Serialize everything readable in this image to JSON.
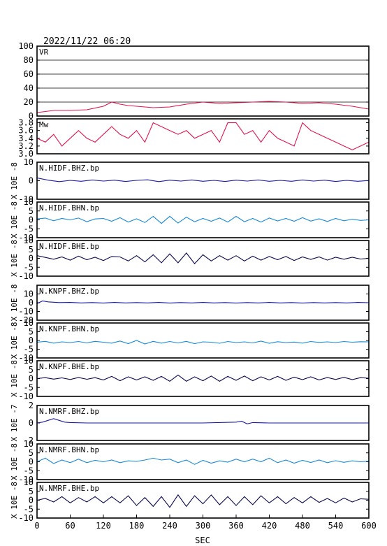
{
  "header": {
    "datetime": "2022/11/22 06:20"
  },
  "chart_data": {
    "type": "line",
    "xlabel": "SEC",
    "xlim": [
      0,
      600
    ],
    "xticks": [
      "0",
      "60",
      "120",
      "180",
      "240",
      "300",
      "360",
      "420",
      "480",
      "540",
      "600"
    ],
    "panels": [
      {
        "name": "VR",
        "ylim": [
          0,
          100
        ],
        "yticks": [
          "100",
          "80",
          "60",
          "40",
          "20",
          "0"
        ],
        "ylabel": "",
        "color": "#e0144c",
        "grid": true,
        "x": [
          0,
          30,
          60,
          90,
          120,
          135,
          150,
          165,
          180,
          210,
          240,
          270,
          300,
          330,
          360,
          390,
          420,
          450,
          480,
          510,
          540,
          570,
          600
        ],
        "y": [
          5,
          8,
          8,
          9,
          14,
          20,
          17,
          15,
          14,
          12,
          13,
          17,
          20,
          18,
          19,
          20,
          21,
          20,
          18,
          19,
          17,
          14,
          10
        ]
      },
      {
        "name": "Mw",
        "ylim": [
          3.0,
          3.9
        ],
        "yticks": [
          "3.8",
          "3.6",
          "3.4",
          "3.2",
          "3.0"
        ],
        "ylabel": "",
        "color": "#e0144c",
        "x": [
          0,
          15,
          30,
          45,
          60,
          75,
          90,
          105,
          120,
          135,
          150,
          165,
          180,
          195,
          210,
          225,
          240,
          255,
          270,
          285,
          300,
          315,
          330,
          345,
          360,
          375,
          390,
          405,
          420,
          435,
          450,
          465,
          480,
          495,
          510,
          525,
          540,
          555,
          570,
          585,
          600
        ],
        "y": [
          3.4,
          3.3,
          3.5,
          3.2,
          3.4,
          3.6,
          3.4,
          3.3,
          3.5,
          3.7,
          3.5,
          3.4,
          3.6,
          3.3,
          3.8,
          3.7,
          3.6,
          3.5,
          3.6,
          3.4,
          3.5,
          3.6,
          3.3,
          3.8,
          3.8,
          3.5,
          3.6,
          3.3,
          3.6,
          3.4,
          3.3,
          3.2,
          3.8,
          3.6,
          3.5,
          3.4,
          3.3,
          3.2,
          3.1,
          3.2,
          3.3
        ]
      },
      {
        "name": "N.HIDF.BHZ.bp",
        "ylim": [
          -10,
          10
        ],
        "yticks": [
          "10",
          "0",
          "-10"
        ],
        "ylabel": "X 10E -8",
        "color": "#1a1aa0",
        "x": [
          0,
          20,
          40,
          60,
          80,
          100,
          120,
          140,
          160,
          180,
          200,
          220,
          240,
          260,
          280,
          300,
          320,
          340,
          360,
          380,
          400,
          420,
          440,
          460,
          480,
          500,
          520,
          540,
          560,
          580,
          600
        ],
        "y": [
          1.5,
          0.3,
          -0.5,
          0.2,
          -0.3,
          0.4,
          -0.2,
          0.3,
          -0.4,
          0.2,
          0.5,
          -0.5,
          0.3,
          -0.2,
          0.4,
          -0.3,
          0.2,
          -0.4,
          0.3,
          -0.2,
          0.4,
          -0.3,
          0.2,
          -0.3,
          0.4,
          -0.2,
          0.3,
          -0.4,
          0.2,
          -0.3,
          0.1
        ]
      },
      {
        "name": "N.HIDF.BHN.bp",
        "ylim": [
          -10,
          10
        ],
        "yticks": [
          "10",
          "5",
          "0",
          "-5",
          "-10"
        ],
        "ylabel": "X 10E -8",
        "color": "#1a8ad4",
        "x": [
          0,
          15,
          30,
          45,
          60,
          75,
          90,
          105,
          120,
          135,
          150,
          165,
          180,
          195,
          210,
          225,
          240,
          255,
          270,
          285,
          300,
          315,
          330,
          345,
          360,
          375,
          390,
          405,
          420,
          435,
          450,
          465,
          480,
          495,
          510,
          525,
          540,
          555,
          570,
          585,
          600
        ],
        "y": [
          0.5,
          1,
          -0.5,
          0.8,
          0,
          1,
          -1,
          0.5,
          0.8,
          -0.8,
          1.2,
          -1.2,
          0.6,
          -1.5,
          2,
          -2,
          2,
          -1.8,
          1.5,
          -1,
          0.8,
          -0.8,
          1,
          -1.2,
          2,
          -1,
          0.8,
          -1.2,
          1,
          -0.6,
          0.8,
          -0.8,
          1.2,
          -0.7,
          0.6,
          -0.9,
          0.8,
          -0.5,
          0.4,
          -0.3,
          0
        ]
      },
      {
        "name": "N.HIDF.BHE.bp",
        "ylim": [
          -10,
          10
        ],
        "yticks": [
          "10",
          "5",
          "0",
          "-5",
          "-10"
        ],
        "ylabel": "X 10E -8",
        "color": "#0a0a50",
        "x": [
          0,
          15,
          30,
          45,
          60,
          75,
          90,
          105,
          120,
          135,
          150,
          165,
          180,
          195,
          210,
          225,
          240,
          255,
          270,
          285,
          300,
          315,
          330,
          345,
          360,
          375,
          390,
          405,
          420,
          435,
          450,
          465,
          480,
          495,
          510,
          525,
          540,
          555,
          570,
          585,
          600
        ],
        "y": [
          1.5,
          0.5,
          -0.5,
          0.8,
          -1,
          1.2,
          -0.8,
          0.6,
          -1.2,
          1,
          0.8,
          -1.5,
          1.5,
          -2,
          2,
          -2.5,
          2.5,
          -2.5,
          3,
          -3,
          2,
          -1.5,
          1.5,
          -1,
          1.5,
          -1.5,
          1.2,
          -1,
          1,
          -0.8,
          1,
          -1.2,
          0.8,
          -0.6,
          0.8,
          -1,
          0.6,
          -0.5,
          0.6,
          -0.4,
          0
        ]
      },
      {
        "name": "N.KNPF.BHZ.bp",
        "ylim": [
          -20,
          20
        ],
        "yticks": [
          "10",
          "0",
          "-10",
          "-20"
        ],
        "ylabel": "X 10E -8",
        "color": "#1a1aa0",
        "x": [
          0,
          10,
          20,
          40,
          60,
          80,
          100,
          120,
          140,
          160,
          180,
          200,
          220,
          240,
          260,
          280,
          300,
          320,
          340,
          360,
          380,
          400,
          420,
          440,
          460,
          480,
          500,
          520,
          540,
          560,
          580,
          600
        ],
        "y": [
          -1,
          2,
          1,
          0.2,
          0.3,
          -0.2,
          0.2,
          -0.3,
          0.3,
          -0.2,
          0.2,
          -0.2,
          0.3,
          -0.3,
          0.2,
          -0.2,
          0.3,
          -0.2,
          0.2,
          -0.3,
          0.2,
          -0.2,
          0.3,
          -0.2,
          0.2,
          -0.3,
          0.2,
          -0.2,
          0.2,
          -0.2,
          0.3,
          0
        ]
      },
      {
        "name": "N.KNPF.BHN.bp",
        "ylim": [
          -10,
          10
        ],
        "yticks": [
          "10",
          "5",
          "0",
          "-5",
          "-10"
        ],
        "ylabel": "X 10E -8",
        "color": "#1a8ad4",
        "x": [
          0,
          15,
          30,
          45,
          60,
          75,
          90,
          105,
          120,
          135,
          150,
          165,
          180,
          195,
          210,
          225,
          240,
          255,
          270,
          285,
          300,
          315,
          330,
          345,
          360,
          375,
          390,
          405,
          420,
          435,
          450,
          465,
          480,
          495,
          510,
          525,
          540,
          555,
          570,
          585,
          600
        ],
        "y": [
          -1,
          -0.5,
          -1.5,
          -0.8,
          -1.2,
          -0.6,
          -1.4,
          -0.5,
          -1,
          -1.5,
          -0.3,
          -1.8,
          0,
          -2,
          -0.5,
          -1.5,
          -0.6,
          -1.4,
          -0.5,
          -1.8,
          -0.8,
          -1,
          -1.6,
          -0.6,
          -1.2,
          -0.8,
          -1.4,
          -0.4,
          -1.6,
          -0.7,
          -1.2,
          -0.9,
          -1.5,
          -0.6,
          -1.1,
          -0.8,
          -1.2,
          -0.6,
          -1,
          -0.7,
          -0.8
        ]
      },
      {
        "name": "N.KNPF.BHE.bp",
        "ylim": [
          -10,
          10
        ],
        "yticks": [
          "10",
          "5",
          "0",
          "-5",
          "-10"
        ],
        "ylabel": "X 10E -8",
        "color": "#0a0a50",
        "x": [
          0,
          15,
          30,
          45,
          60,
          75,
          90,
          105,
          120,
          135,
          150,
          165,
          180,
          195,
          210,
          225,
          240,
          255,
          270,
          285,
          300,
          315,
          330,
          345,
          360,
          375,
          390,
          405,
          420,
          435,
          450,
          465,
          480,
          495,
          510,
          525,
          540,
          555,
          570,
          585,
          600
        ],
        "y": [
          0,
          0.5,
          -0.3,
          0.4,
          -0.5,
          0.6,
          -0.4,
          0.5,
          -0.8,
          1.2,
          -1.2,
          1,
          -0.8,
          1,
          -1,
          1.2,
          -1.5,
          2,
          -1.5,
          1,
          -1.2,
          1.4,
          -1.5,
          1.2,
          -1,
          1.4,
          -1.2,
          1,
          -0.8,
          1.2,
          -1,
          0.8,
          -0.6,
          1,
          -0.8,
          0.6,
          -0.5,
          0.7,
          -0.6,
          0.5,
          0.2
        ]
      },
      {
        "name": "N.NMRF.BHZ.bp",
        "ylim": [
          -2,
          2
        ],
        "yticks": [
          "2",
          "0",
          "-2"
        ],
        "ylabel": "X 10E -7",
        "color": "#1a1aa0",
        "x": [
          0,
          10,
          20,
          30,
          40,
          50,
          60,
          90,
          120,
          180,
          240,
          300,
          360,
          370,
          380,
          390,
          420,
          480,
          540,
          600
        ],
        "y": [
          0,
          0.1,
          0.3,
          0.5,
          0.3,
          0.1,
          0.05,
          0,
          0,
          0,
          0,
          0,
          0.1,
          0.2,
          -0.1,
          0.05,
          0,
          0,
          0,
          0
        ]
      },
      {
        "name": "N.NMRF.BHN.bp",
        "ylim": [
          -10,
          10
        ],
        "yticks": [
          "10",
          "5",
          "0",
          "-5",
          "-10"
        ],
        "ylabel": "X 10E -8",
        "color": "#1a8ad4",
        "x": [
          0,
          15,
          30,
          45,
          60,
          75,
          90,
          105,
          120,
          135,
          150,
          165,
          180,
          195,
          210,
          225,
          240,
          255,
          270,
          285,
          300,
          315,
          330,
          345,
          360,
          375,
          390,
          405,
          420,
          435,
          450,
          465,
          480,
          495,
          510,
          525,
          540,
          555,
          570,
          585,
          600
        ],
        "y": [
          0,
          2,
          -1,
          1,
          -0.5,
          1.5,
          -0.5,
          0.8,
          0,
          1,
          -0.5,
          0.5,
          0.2,
          1,
          2,
          1,
          1.5,
          -0.5,
          1,
          -1.5,
          0.8,
          -0.8,
          0.5,
          -0.2,
          1.5,
          0,
          1.5,
          0,
          2,
          -0.5,
          1,
          -0.8,
          0.8,
          -0.4,
          1,
          -0.5,
          0.6,
          -0.3,
          0.5,
          0,
          0.3
        ]
      },
      {
        "name": "N.NMRF.BHE.bp",
        "ylim": [
          -10,
          10
        ],
        "yticks": [
          "10",
          "5",
          "0",
          "-5",
          "-10"
        ],
        "ylabel": "X 10E -8",
        "color": "#0a0a50",
        "x": [
          0,
          15,
          30,
          45,
          60,
          75,
          90,
          105,
          120,
          135,
          150,
          165,
          180,
          195,
          210,
          225,
          240,
          255,
          270,
          285,
          300,
          315,
          330,
          345,
          360,
          375,
          390,
          405,
          420,
          435,
          450,
          465,
          480,
          495,
          510,
          525,
          540,
          555,
          570,
          585,
          600
        ],
        "y": [
          0,
          1,
          -1,
          2,
          -1.5,
          1.5,
          -1,
          2,
          -1.5,
          2,
          -1.5,
          2.5,
          -3,
          1.5,
          -3.5,
          2,
          -4,
          3,
          -3.5,
          2.5,
          -2,
          3,
          -2.5,
          2,
          -3,
          2,
          -2.5,
          2.5,
          -1.5,
          2,
          -2,
          1.5,
          -1.5,
          2,
          -1.2,
          1,
          -1.5,
          1.2,
          -1,
          0.8,
          0.5
        ]
      }
    ]
  }
}
